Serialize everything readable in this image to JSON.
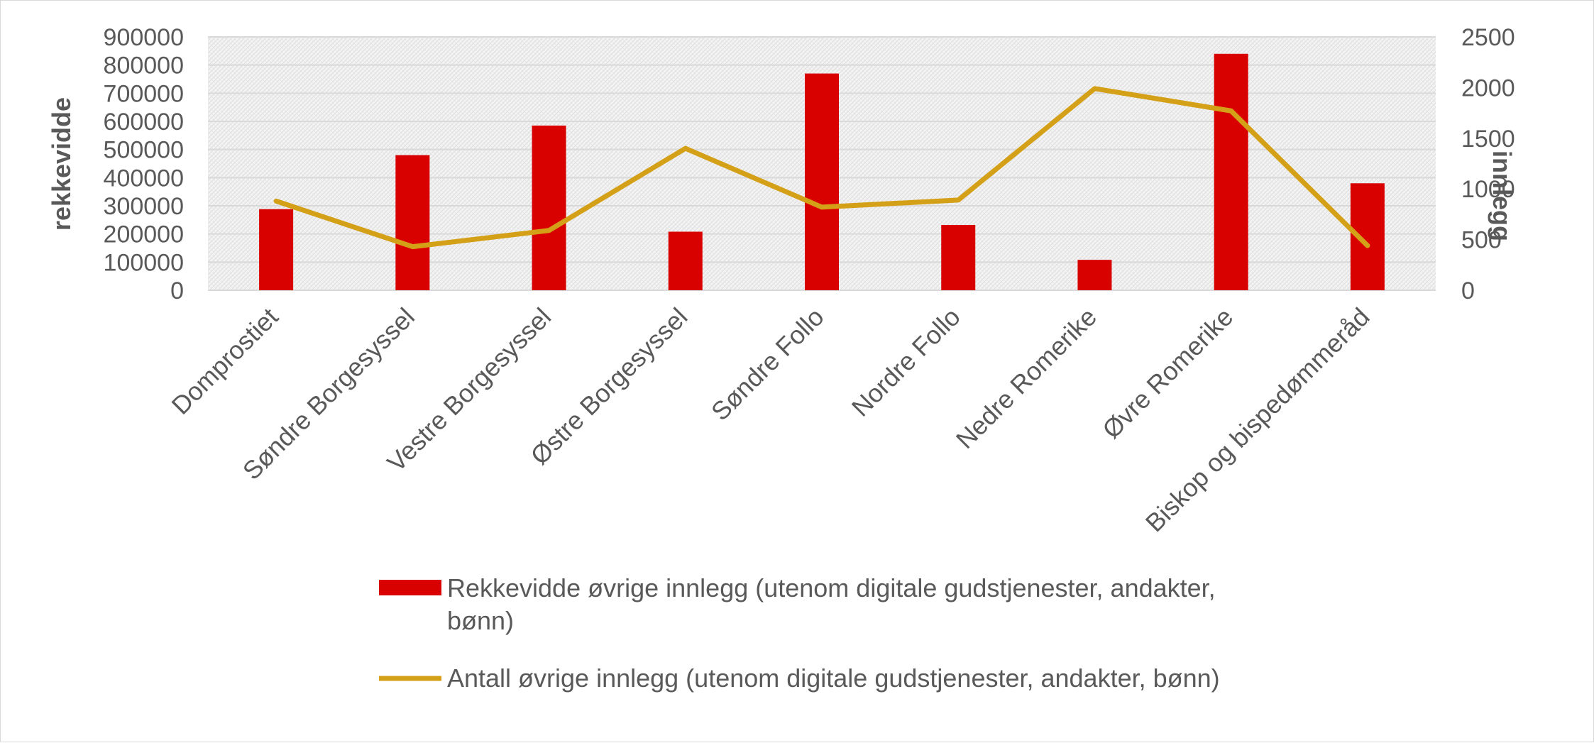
{
  "chart_data": {
    "type": "bar",
    "categories": [
      "Domprostiet",
      "Søndre Borgesyssel",
      "Vestre Borgesyssel",
      "Østre Borgesyssel",
      "Søndre Follo",
      "Nordre Follo",
      "Nedre Romerike",
      "Øvre Romerike",
      "Biskop og bispedømmeråd"
    ],
    "series": [
      {
        "name": "Rekkevidde øvrige innlegg (utenom digitale gudstjenester, andakter, bønn)",
        "type": "bar",
        "axis": "left",
        "color": "#d90000",
        "values": [
          288000,
          480000,
          585000,
          208000,
          770000,
          232000,
          108000,
          840000,
          380000
        ]
      },
      {
        "name": "Antall øvrige innlegg (utenom digitale gudstjenester, andakter, bønn)",
        "type": "line",
        "axis": "right",
        "color": "#d4a017",
        "values": [
          880,
          430,
          590,
          1400,
          820,
          890,
          1990,
          1770,
          440
        ]
      }
    ],
    "ylabel": "rekkevidde",
    "y2label": "innlegg",
    "ylim": [
      0,
      900000
    ],
    "y2lim": [
      0,
      2500
    ],
    "yticks": [
      "900000",
      "800000",
      "700000",
      "600000",
      "500000",
      "400000",
      "300000",
      "200000",
      "100000",
      "0"
    ],
    "y2ticks": [
      "2500",
      "2000",
      "1500",
      "1000",
      "500",
      "0"
    ],
    "grid": true,
    "legend_position": "bottom"
  },
  "legend": {
    "bar_label_line1": "Rekkevidde øvrige innlegg (utenom digitale gudstjenester, andakter,",
    "bar_label_line2": "bønn)",
    "line_label": "Antall øvrige innlegg (utenom digitale gudstjenester, andakter, bønn)"
  }
}
